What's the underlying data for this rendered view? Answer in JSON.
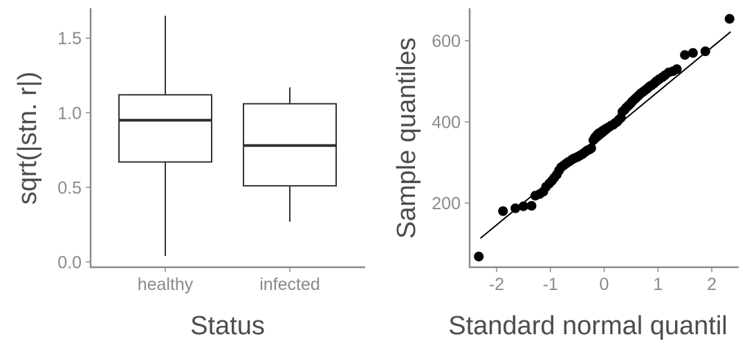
{
  "chart_data": [
    {
      "type": "box",
      "xlabel": "Status",
      "ylabel": "sqrt(|stn. r|)",
      "categories": [
        "healthy",
        "infected"
      ],
      "boxes": [
        {
          "category": "healthy",
          "min": 0.04,
          "q1": 0.67,
          "median": 0.95,
          "q3": 1.12,
          "max": 1.65
        },
        {
          "category": "infected",
          "min": 0.27,
          "q1": 0.51,
          "median": 0.78,
          "q3": 1.06,
          "max": 1.17
        }
      ],
      "ylim": [
        -0.04,
        1.7
      ],
      "yticks": [
        0.0,
        0.5,
        1.0,
        1.5
      ],
      "ytick_labels": [
        "0.0",
        "0.5",
        "1.0",
        "1.5"
      ],
      "grid": false
    },
    {
      "type": "scatter",
      "xlabel": "Standard normal quantil",
      "ylabel": "Sample quantiles",
      "xlim": [
        -2.5,
        2.5
      ],
      "ylim": [
        40,
        680
      ],
      "xticks": [
        -2,
        -1,
        0,
        1,
        2
      ],
      "xtick_labels": [
        "-2",
        "-1",
        "0",
        "1",
        "2"
      ],
      "yticks": [
        200,
        400,
        600
      ],
      "ytick_labels": [
        "200",
        "400",
        "600"
      ],
      "reference_line": {
        "x": [
          -2.3,
          2.35
        ],
        "y": [
          113,
          622
        ]
      },
      "points": {
        "x": [
          -2.33,
          -1.88,
          -1.65,
          -1.5,
          -1.35,
          -1.28,
          -1.2,
          -1.13,
          -1.08,
          -1.02,
          -0.97,
          -0.93,
          -0.88,
          -0.84,
          -0.8,
          -0.76,
          -0.72,
          -0.68,
          -0.64,
          -0.6,
          -0.56,
          -0.52,
          -0.49,
          -0.45,
          -0.41,
          -0.38,
          -0.34,
          -0.31,
          -0.27,
          -0.24,
          -0.2,
          -0.17,
          -0.13,
          -0.1,
          -0.07,
          -0.03,
          0.0,
          0.03,
          0.07,
          0.1,
          0.13,
          0.17,
          0.2,
          0.24,
          0.27,
          0.31,
          0.34,
          0.38,
          0.41,
          0.45,
          0.49,
          0.52,
          0.56,
          0.6,
          0.64,
          0.68,
          0.72,
          0.76,
          0.8,
          0.84,
          0.88,
          0.93,
          0.97,
          1.02,
          1.08,
          1.13,
          1.2,
          1.28,
          1.35,
          1.5,
          1.65,
          1.88,
          2.33
        ],
        "y": [
          68,
          180,
          187,
          192,
          193,
          218,
          222,
          228,
          240,
          248,
          255,
          262,
          270,
          280,
          288,
          292,
          296,
          300,
          303,
          307,
          310,
          312,
          314,
          317,
          320,
          323,
          327,
          330,
          332,
          335,
          355,
          362,
          368,
          372,
          374,
          378,
          380,
          383,
          386,
          388,
          391,
          393,
          397,
          400,
          405,
          410,
          425,
          430,
          435,
          440,
          445,
          450,
          455,
          460,
          465,
          470,
          474,
          478,
          482,
          487,
          490,
          495,
          500,
          505,
          510,
          515,
          522,
          525,
          530,
          565,
          570,
          574,
          654
        ]
      }
    }
  ]
}
